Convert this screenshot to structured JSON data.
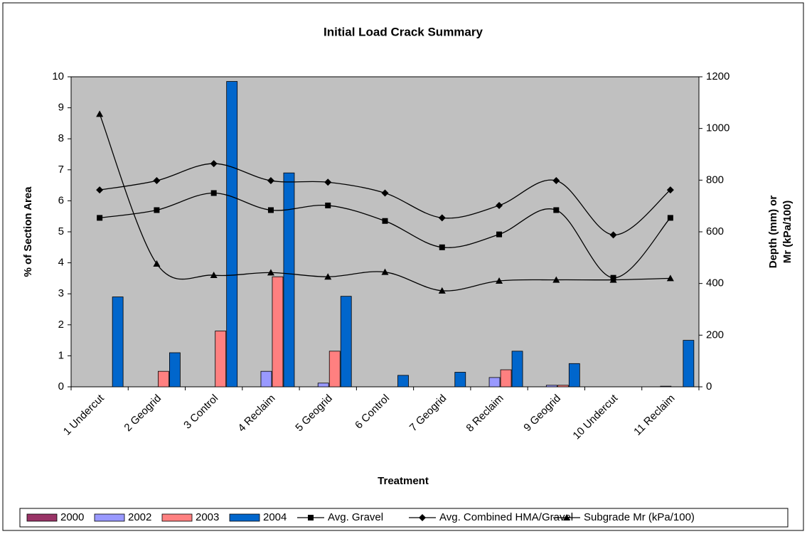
{
  "chart_data": {
    "type": "bar_line_combo",
    "title": "Initial Load Crack Summary",
    "x_label": "Treatment",
    "y_label": "% of Section Area",
    "y2_label": [
      "Depth (mm) or",
      "Mr (kPa/100)"
    ],
    "categories": [
      "1 Undercut",
      "2 Geogrid",
      "3 Control",
      "4 Reclaim",
      "5 Geogrid",
      "6 Control",
      "7 Geogrid",
      "8 Reclaim",
      "9 Geogrid",
      "10 Undercut",
      "11 Reclaim"
    ],
    "ylim": [
      0,
      10
    ],
    "yticks": [
      0,
      1,
      2,
      3,
      4,
      5,
      6,
      7,
      8,
      9,
      10
    ],
    "y2lim": [
      0,
      1200
    ],
    "y2ticks": [
      0,
      200,
      400,
      600,
      800,
      1000,
      1200
    ],
    "grid": false,
    "background": "#c0c0c0",
    "legend": "bottom",
    "series": [
      {
        "name": "2000",
        "kind": "bar",
        "color": "#993366",
        "values": [
          0,
          0,
          0,
          0,
          0,
          0,
          0,
          0,
          0,
          0,
          0
        ]
      },
      {
        "name": "2002",
        "kind": "bar",
        "color": "#9999ff",
        "values": [
          0,
          0,
          0,
          0.5,
          0.12,
          0,
          0,
          0.3,
          0.05,
          0,
          0.02
        ]
      },
      {
        "name": "2003",
        "kind": "bar",
        "color": "#ff8080",
        "values": [
          0,
          0.5,
          1.8,
          3.55,
          1.15,
          0,
          0,
          0.55,
          0.05,
          0,
          0
        ]
      },
      {
        "name": "2004",
        "kind": "bar",
        "color": "#0066cc",
        "values": [
          2.9,
          1.1,
          9.85,
          6.9,
          2.92,
          0.37,
          0.47,
          1.15,
          0.75,
          0,
          1.5
        ]
      },
      {
        "name": "Avg. Gravel",
        "kind": "line",
        "axis": "y2",
        "marker": "square",
        "color": "#000000",
        "values": [
          654,
          684,
          750,
          684,
          702,
          642,
          540,
          590,
          684,
          422,
          654
        ]
      },
      {
        "name": "Avg. Combined HMA/Gravel",
        "kind": "line",
        "axis": "y2",
        "marker": "diamond",
        "color": "#000000",
        "values": [
          762,
          798,
          864,
          798,
          792,
          750,
          654,
          702,
          798,
          588,
          762
        ]
      },
      {
        "name": "Subgrade Mr (kPa/100)",
        "kind": "line",
        "axis": "y2",
        "marker": "triangle",
        "color": "#000000",
        "values": [
          1056,
          476,
          432,
          442,
          426,
          444,
          372,
          410,
          414,
          414,
          420
        ]
      }
    ]
  }
}
